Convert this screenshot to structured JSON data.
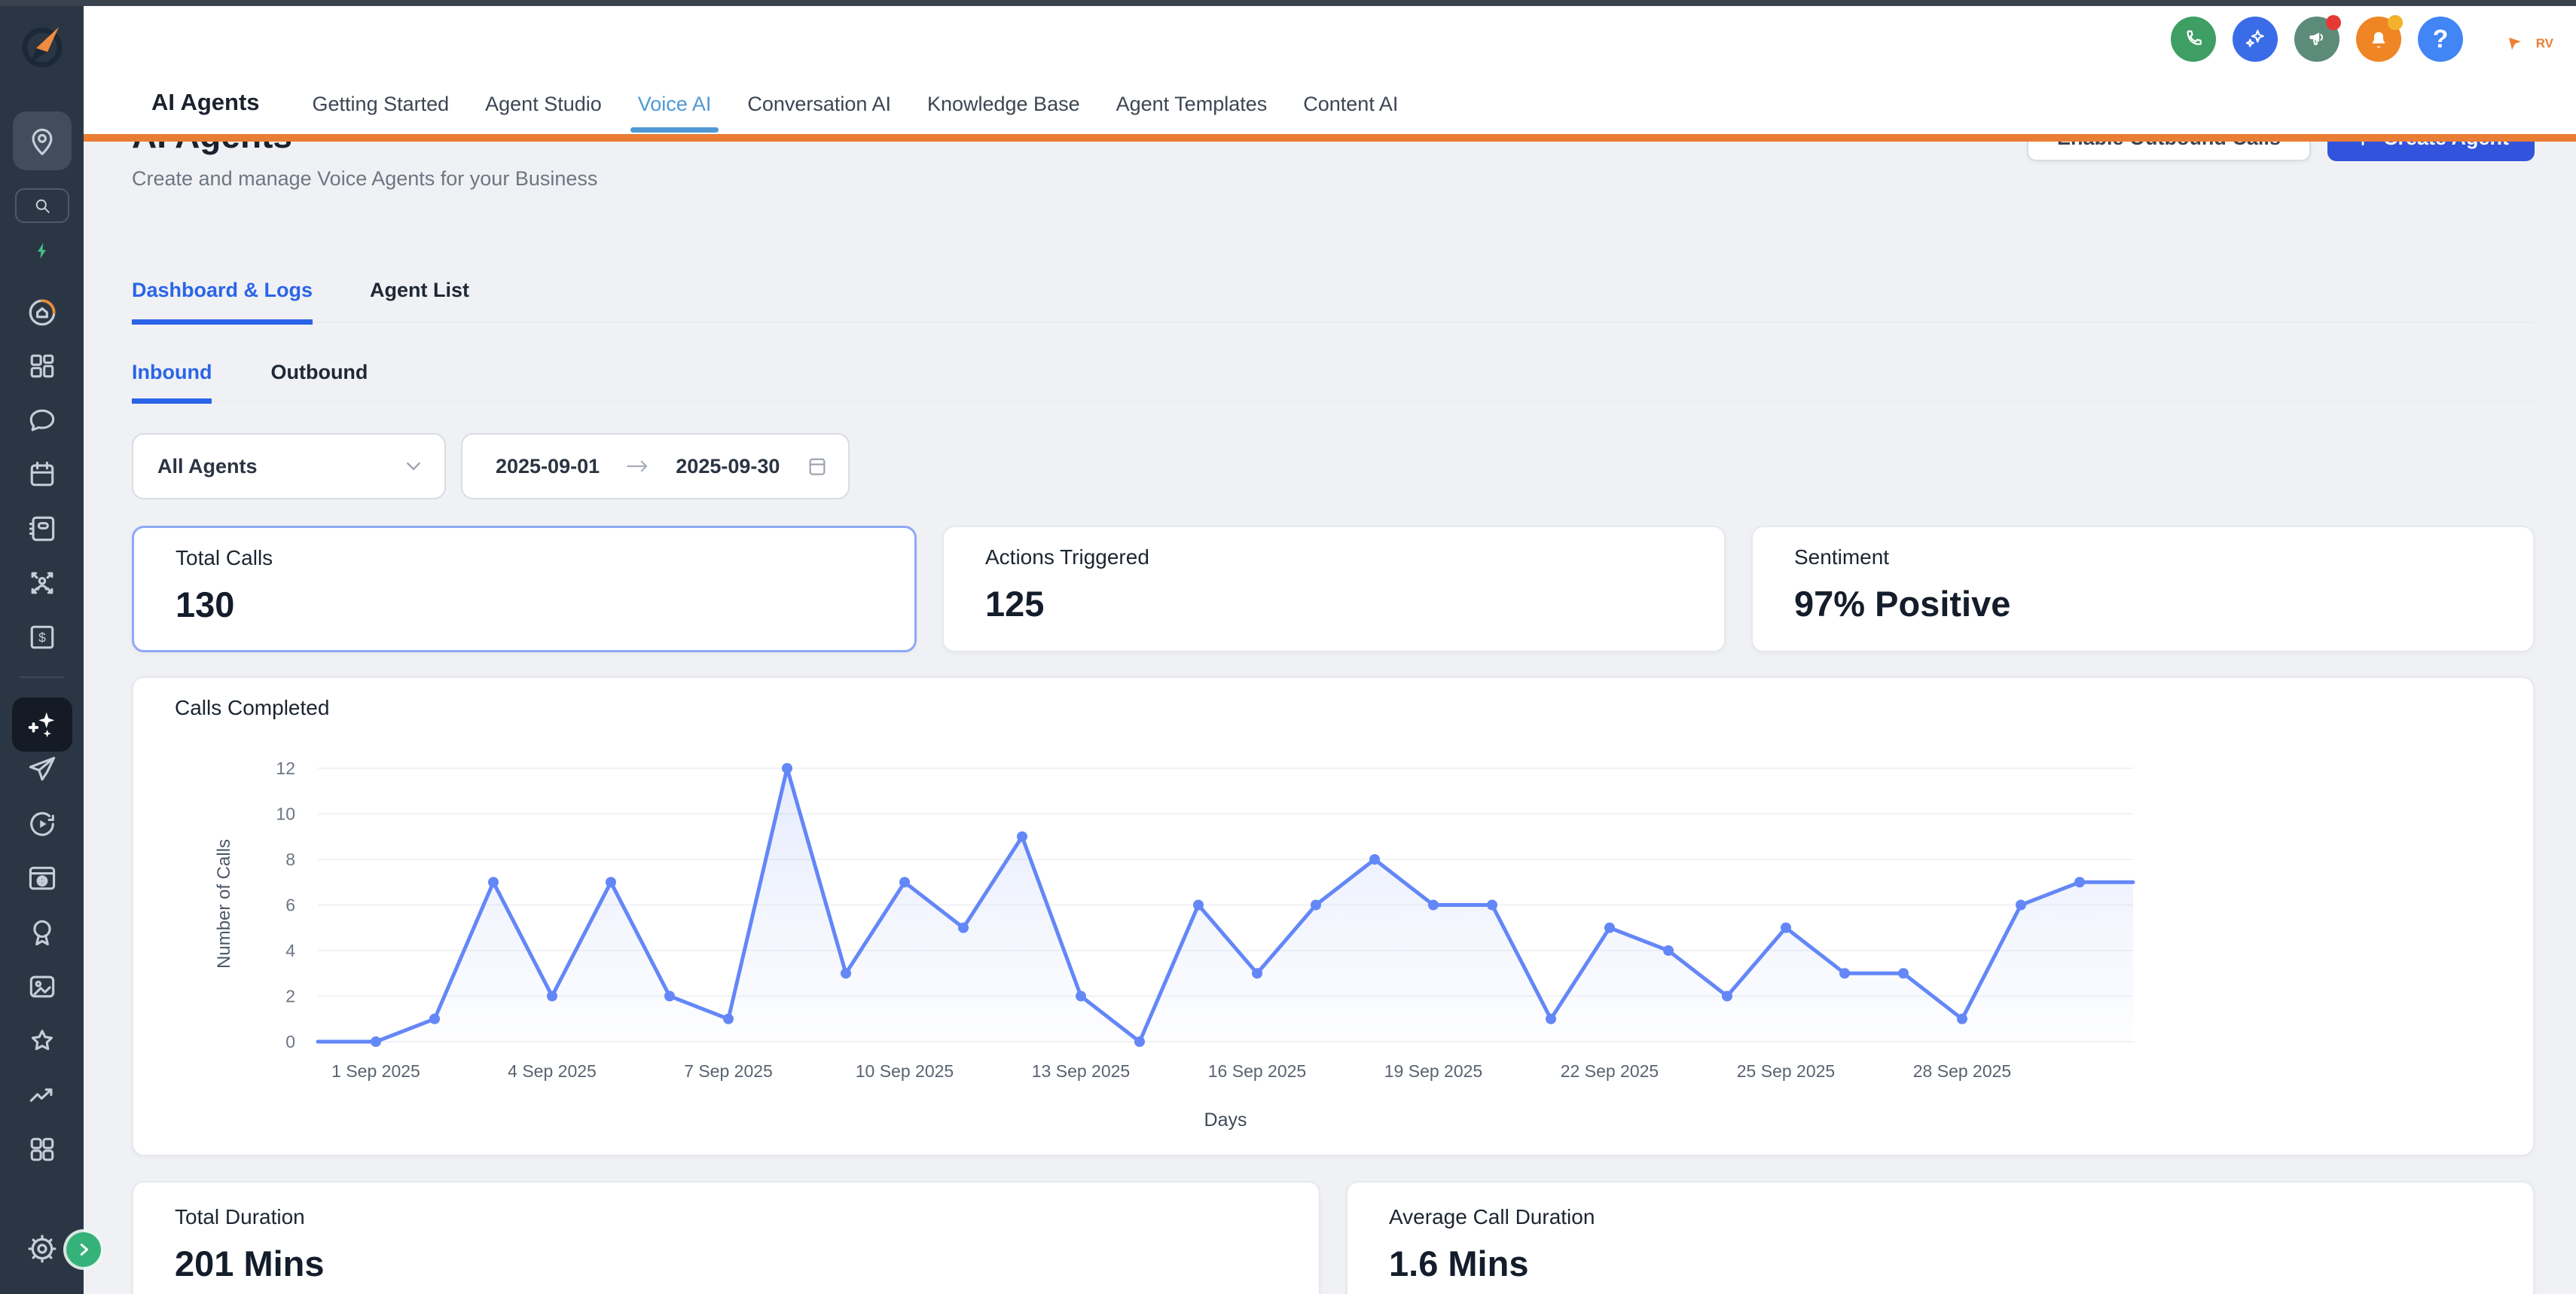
{
  "theme": {
    "orange": "#e97d33",
    "brand_blue": "#3253dc",
    "tab_blue": "#2b64e8",
    "voiceai_blue": "#4f99d5",
    "line_blue": "#6487f7",
    "highlight_border": "#8ea8f7",
    "sidebar_bg": "#2b3644",
    "green": "#42c289",
    "page_bg": "#eff1f4"
  },
  "topbar": {
    "brand": "AI Agents",
    "tabs": [
      "Getting Started",
      "Agent Studio",
      "Voice AI",
      "Conversation AI",
      "Knowledge Base",
      "Agent Templates",
      "Content AI"
    ],
    "active_tab": "Voice AI",
    "action_icons": [
      "phone-icon",
      "ai-sparkles-icon",
      "announcements-icon",
      "notifications-icon",
      "help-icon"
    ],
    "help_glyph": "?",
    "collab_label": "RV"
  },
  "page_header": {
    "title": "AI Agents",
    "subtitle": "Create and manage Voice Agents for your Business",
    "enable_outbound_label": "Enable Outbound Calls",
    "create_agent_label": "Create Agent"
  },
  "tabs_primary": [
    {
      "label": "Dashboard & Logs",
      "active": true
    },
    {
      "label": "Agent List",
      "active": false
    }
  ],
  "tabs_secondary": [
    {
      "label": "Inbound",
      "active": true
    },
    {
      "label": "Outbound",
      "active": false
    }
  ],
  "filters": {
    "agent_select": "All Agents",
    "date_start": "2025-09-01",
    "date_end": "2025-09-30"
  },
  "stats": [
    {
      "label": "Total Calls",
      "value": "130",
      "highlighted": true
    },
    {
      "label": "Actions Triggered",
      "value": "125",
      "highlighted": false
    },
    {
      "label": "Sentiment",
      "value": "97% Positive",
      "highlighted": false
    }
  ],
  "chart_data": {
    "type": "line",
    "title": "Calls Completed",
    "xlabel": "Days",
    "ylabel": "Number of Calls",
    "x_tick_labels": [
      "1 Sep 2025",
      "4 Sep 2025",
      "7 Sep 2025",
      "10 Sep 2025",
      "13 Sep 2025",
      "16 Sep 2025",
      "19 Sep 2025",
      "22 Sep 2025",
      "25 Sep 2025",
      "28 Sep 2025"
    ],
    "points_per_tick": 3,
    "values": [
      0,
      1,
      7,
      2,
      7,
      2,
      1,
      12,
      3,
      7,
      5,
      9,
      2,
      0,
      6,
      3,
      6,
      8,
      6,
      6,
      1,
      5,
      4,
      2,
      5,
      3,
      3,
      1,
      6,
      7
    ],
    "ylim": [
      0,
      12
    ],
    "y_ticks": [
      0,
      2,
      4,
      6,
      8,
      10,
      12
    ],
    "grid": true,
    "legend": null,
    "line_color": "#6487f7"
  },
  "footer_stats": [
    {
      "label": "Total Duration",
      "value": "201 Mins"
    },
    {
      "label": "Average Call Duration",
      "value": "1.6 Mins"
    }
  ],
  "sidebar": {
    "items": [
      "business-location",
      "search",
      "quick-actions-bolt",
      "launchpad",
      "dashboard",
      "conversations",
      "calendar",
      "contacts",
      "opportunities",
      "payments",
      "ai-agents",
      "marketing",
      "automation",
      "sites",
      "memberships",
      "media",
      "reputation",
      "reporting",
      "app-marketplace",
      "settings"
    ]
  }
}
